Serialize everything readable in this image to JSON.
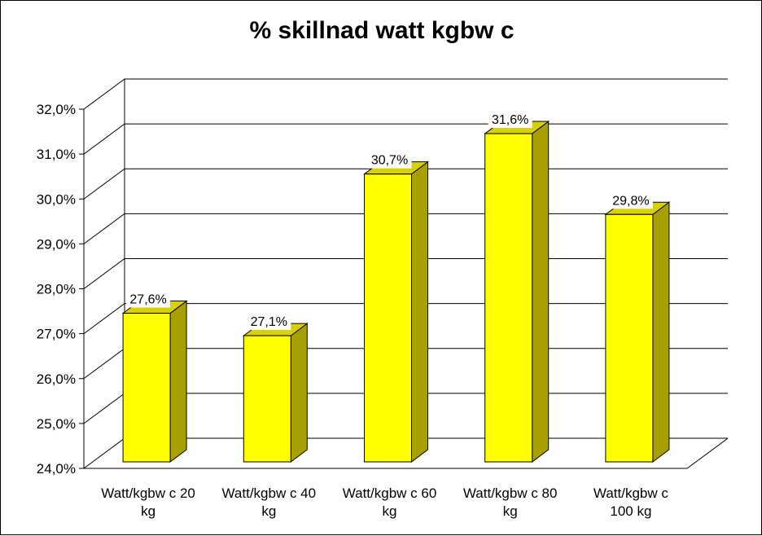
{
  "chart_data": {
    "type": "bar",
    "title": "% skillnad watt kgbw c",
    "xlabel": "",
    "ylabel": "",
    "categories": [
      [
        "Watt/kgbw c 20",
        "kg"
      ],
      [
        "Watt/kgbw c 40",
        "kg"
      ],
      [
        "Watt/kgbw c 60",
        "kg"
      ],
      [
        "Watt/kgbw c 80",
        "kg"
      ],
      [
        "Watt/kgbw c",
        "100 kg"
      ]
    ],
    "values": [
      27.6,
      27.1,
      30.7,
      31.6,
      29.8
    ],
    "data_labels": [
      "27,6%",
      "27,1%",
      "30,7%",
      "31,6%",
      "29,8%"
    ],
    "ylim": [
      24.0,
      32.0
    ],
    "yticks": [
      {
        "v": 24.0,
        "label": "24,0%"
      },
      {
        "v": 25.0,
        "label": "25,0%"
      },
      {
        "v": 26.0,
        "label": "26,0%"
      },
      {
        "v": 27.0,
        "label": "27,0%"
      },
      {
        "v": 28.0,
        "label": "28,0%"
      },
      {
        "v": 29.0,
        "label": "29,0%"
      },
      {
        "v": 30.0,
        "label": "30,0%"
      },
      {
        "v": 31.0,
        "label": "31,0%"
      },
      {
        "v": 32.0,
        "label": "32,0%"
      }
    ],
    "grid": true,
    "style": "3d-column",
    "colors": {
      "bar_front": "#ffff00",
      "bar_side": "#a8a000",
      "bar_top": "#d8d000",
      "grid": "#000000"
    }
  }
}
